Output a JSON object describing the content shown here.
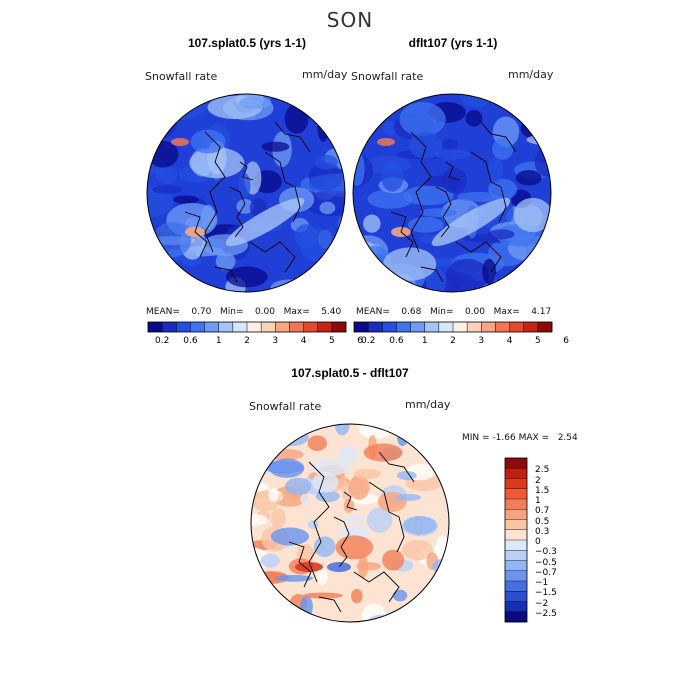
{
  "page": {
    "season": "SON"
  },
  "panels": [
    {
      "title": "107.splat0.5 (yrs 1-1)",
      "variable": "Snowfall rate",
      "units": "mm/day",
      "stats": {
        "mean_label": "MEAN=",
        "mean": "0.70",
        "min_label": "Min=",
        "min": "0.00",
        "max_label": "Max=",
        "max": "5.40"
      }
    },
    {
      "title": "dflt107 (yrs 1-1)",
      "variable": "Snowfall rate",
      "units": "mm/day",
      "stats": {
        "mean_label": "MEAN=",
        "mean": "0.68",
        "min_label": "Min=",
        "min": "0.00",
        "max_label": "Max=",
        "max": "4.17"
      }
    }
  ],
  "abs_colorbar": {
    "ticks": [
      "0.2",
      "0.6",
      "1",
      "2",
      "3",
      "4",
      "5",
      "6"
    ],
    "colors": [
      "#0a0a8a",
      "#1a2cc0",
      "#2450e0",
      "#3f74f0",
      "#6f9cf5",
      "#a6c4f7",
      "#d8e6fb",
      "#fdf0e6",
      "#fbd2b8",
      "#f6a585",
      "#ef7657",
      "#e04a2f",
      "#c42414",
      "#8c0a0a"
    ]
  },
  "diff_panel": {
    "title": "107.splat0.5 - dflt107",
    "variable": "Snowfall rate",
    "units": "mm/day",
    "stats": {
      "min_label": "MIN =",
      "min": "-1.66",
      "max_label": "MAX =",
      "max": "2.54"
    },
    "colorbar": {
      "ticks": [
        "2.5",
        "2",
        "1.5",
        "1",
        "0.7",
        "0.5",
        "0.3",
        "0",
        "−0.3",
        "−0.5",
        "−0.7",
        "−1",
        "−1.5",
        "−2",
        "−2.5"
      ],
      "colors": [
        "#8c0a0a",
        "#c01e0e",
        "#dc3a1e",
        "#ec5a36",
        "#f27e58",
        "#f7a27e",
        "#fac4a6",
        "#fde4d2",
        "#dce9fb",
        "#b8d0f7",
        "#92b6f3",
        "#6a94ee",
        "#4470e4",
        "#2a4ed0",
        "#1630b0",
        "#0a0a80"
      ]
    }
  }
}
